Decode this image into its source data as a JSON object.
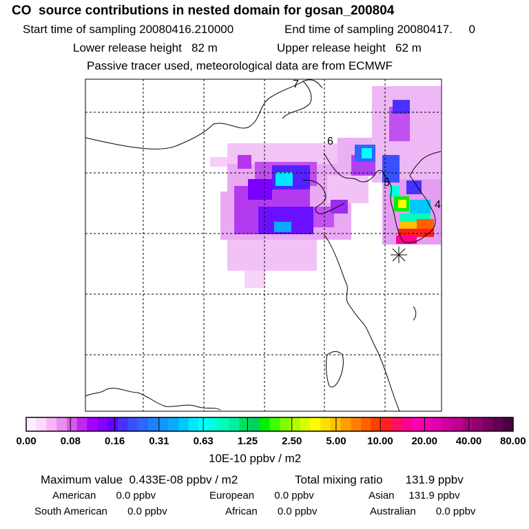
{
  "header": {
    "title": "CO  source contributions in nested domain for gosan_200804",
    "start_label": "Start time of sampling 20080416.210000",
    "end_label": "End time of sampling 20080417.     0",
    "lower_label": "Lower release height   82 m",
    "upper_label": "Upper release height   62 m",
    "info": "Passive tracer used, meteorological data are from ECMWF"
  },
  "map_labels": [
    "7",
    "6",
    "5",
    "4"
  ],
  "chart_data": {
    "type": "heatmap",
    "colorbar_ticks": [
      "0.00",
      "0.08",
      "0.16",
      "0.31",
      "0.63",
      "1.25",
      "2.50",
      "5.00",
      "10.00",
      "20.00",
      "40.00",
      "80.00"
    ],
    "colorbar_colors": [
      "#fff0ff",
      "#ffd8ff",
      "#f7b5f7",
      "#ea8ef0",
      "#d85aee",
      "#bf28ee",
      "#a300ff",
      "#8400ff",
      "#6600ff",
      "#4a30ff",
      "#3a50ff",
      "#2e66ff",
      "#1f80ff",
      "#1596ff",
      "#0aaaff",
      "#00c8ff",
      "#00e8ff",
      "#00ffff",
      "#00ffdd",
      "#00ffbb",
      "#00f0a0",
      "#00e060",
      "#00d060",
      "#00f000",
      "#40ff00",
      "#80ff00",
      "#b0ff00",
      "#d8ff00",
      "#ffff00",
      "#ffe000",
      "#ffc000",
      "#ffa000",
      "#ff8000",
      "#ff6000",
      "#ff4000",
      "#ff2020",
      "#ff1060",
      "#ff0090",
      "#ff00b0",
      "#f000b0",
      "#e000b0",
      "#d000a0",
      "#c00090",
      "#a80080",
      "#900070",
      "#780060",
      "#600050",
      "#480040"
    ],
    "units": "10E-10 ppbv / m2",
    "receptor_marker": "asterisk"
  },
  "summary": {
    "max_label": "Maximum value  0.433E-08 ppbv / m2",
    "total_label": "Total mixing ratio       131.9 ppbv",
    "american": "American       0.0 ppbv",
    "european": "European       0.0 ppbv",
    "asian": "Asian     131.9 ppbv",
    "south_american": "South American       0.0 ppbv",
    "african": "African       0.0 ppbv",
    "australian": "Australian       0.0 ppbv"
  }
}
